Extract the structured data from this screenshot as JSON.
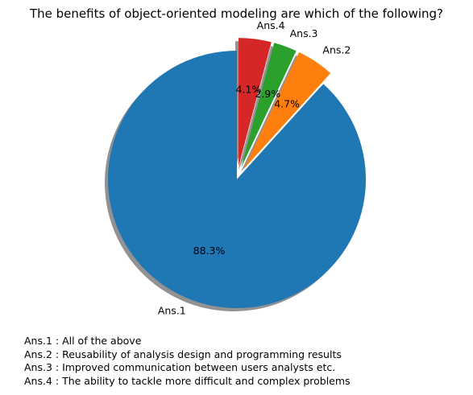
{
  "chart_data": {
    "type": "pie",
    "title": "The benefits of object-oriented modeling are which of the following?",
    "categories": [
      "Ans.1",
      "Ans.2",
      "Ans.3",
      "Ans.4"
    ],
    "values": [
      88.3,
      4.7,
      2.9,
      4.1
    ],
    "value_labels": [
      "88.3%",
      "4.7%",
      "2.9%",
      "4.1%"
    ],
    "colors": [
      "#1f77b4",
      "#ff7f0e",
      "#2ca02c",
      "#d62728"
    ],
    "exploded": [
      false,
      true,
      true,
      true
    ],
    "shadow": true,
    "start_angle_deg": 90,
    "direction": "counterclockwise",
    "notes": [
      "Ans.1 : All of the above",
      "Ans.2 : Reusability of analysis design and programming results",
      "Ans.3 : Improved communication between users analysts etc.",
      "Ans.4 : The ability to tackle more difficult and complex problems"
    ]
  }
}
